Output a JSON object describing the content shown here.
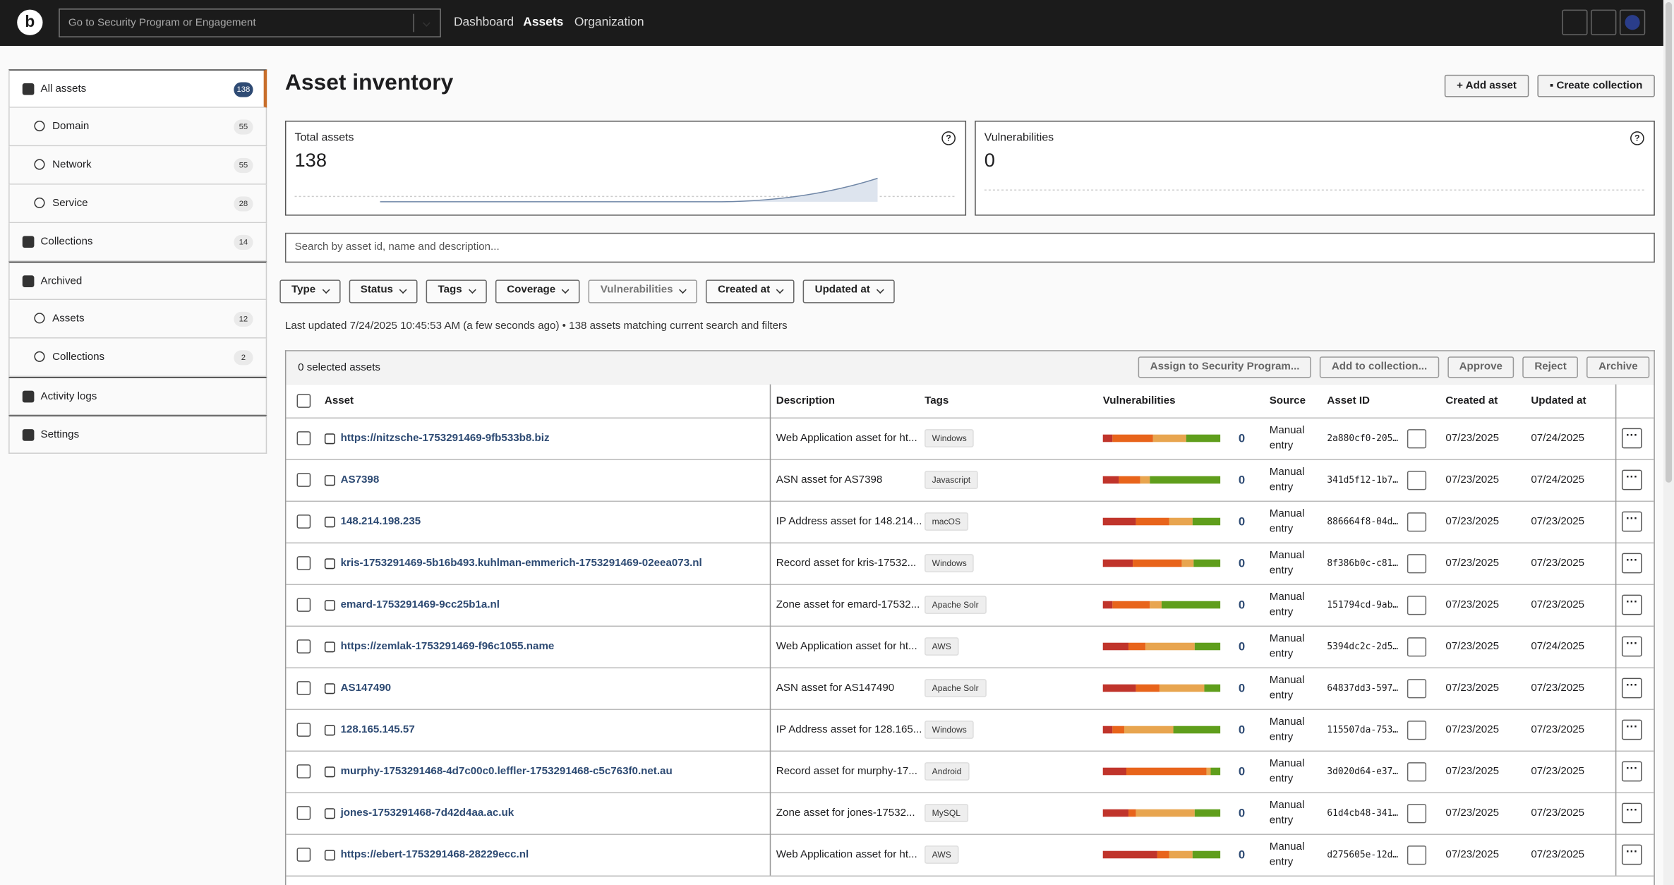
{
  "header": {
    "search_placeholder": "Go to Security Program or Engagement",
    "nav": [
      "Dashboard",
      "Assets",
      "Organization"
    ]
  },
  "sidebar": [
    {
      "label": "All assets",
      "count": 138
    },
    {
      "label": "Domain",
      "count": 55
    },
    {
      "label": "Network",
      "count": 55
    },
    {
      "label": "Service",
      "count": 28
    },
    {
      "label": "Collections",
      "count": 14
    },
    {
      "label": "Archived"
    },
    {
      "label": "Assets",
      "count": 12
    },
    {
      "label": "Collections",
      "count": 2
    },
    {
      "label": "Activity logs"
    },
    {
      "label": "Settings"
    }
  ],
  "page": {
    "title": "Asset inventory",
    "buttons": [
      "Add asset",
      "Create collection"
    ]
  },
  "cards": [
    {
      "label": "Total assets",
      "value": 138
    },
    {
      "label": "Vulnerabilities",
      "value": 0
    }
  ],
  "search_placeholder": "Search by asset id, name and description...",
  "filters": [
    "Type",
    "Status",
    "Tags",
    "Coverage",
    "Vulnerabilities",
    "Created at",
    "Updated at"
  ],
  "status_line": "Last updated 7/24/2025 10:45:53 AM (a few seconds ago) • 138 assets matching current search and filters",
  "table": {
    "selected": "0 selected assets",
    "actions": [
      "Assign to Security Program...",
      "Add to collection...",
      "Approve",
      "Reject",
      "Archive"
    ],
    "columns": [
      "Asset",
      "Description",
      "Tags",
      "Vulnerabilities",
      "Source",
      "Asset ID",
      "Created at",
      "Updated at"
    ],
    "severity_colors": [
      "#c0342b",
      "#e8641b",
      "#e8a54f",
      "#5f9e1c"
    ],
    "rows": [
      {
        "asset": "https://nitzsche-1753291469-9fb533b8.biz",
        "description": "Web Application asset for ht...",
        "tag": "Windows",
        "severity_bar": [
          8,
          35,
          28,
          29
        ],
        "vulnerabilities": 0,
        "source": "Manual entry",
        "asset_id": "2a880cf0-205…",
        "created": "07/23/2025",
        "updated": "07/24/2025"
      },
      {
        "asset": "AS7398",
        "description": "ASN asset for AS7398",
        "tag": "Javascript",
        "severity_bar": [
          14,
          18,
          8,
          60
        ],
        "vulnerabilities": 0,
        "source": "Manual entry",
        "asset_id": "341d5f12-1b7…",
        "created": "07/23/2025",
        "updated": "07/24/2025"
      },
      {
        "asset": "148.214.198.235",
        "description": "IP Address asset for 148.214...",
        "tag": "macOS",
        "severity_bar": [
          28,
          28,
          20,
          24
        ],
        "vulnerabilities": 0,
        "source": "Manual entry",
        "asset_id": "886664f8-04d…",
        "created": "07/23/2025",
        "updated": "07/23/2025"
      },
      {
        "asset": "kris-1753291469-5b16b493.kuhlman-emmerich-1753291469-02eea073.nl",
        "description": "Record asset for kris-17532...",
        "tag": "Windows",
        "severity_bar": [
          25,
          42,
          10,
          23
        ],
        "vulnerabilities": 0,
        "source": "Manual entry",
        "asset_id": "8f386b0c-c81…",
        "created": "07/23/2025",
        "updated": "07/23/2025"
      },
      {
        "asset": "emard-1753291469-9cc25b1a.nl",
        "description": "Zone asset for emard-17532...",
        "tag": "Apache Solr",
        "severity_bar": [
          8,
          32,
          10,
          50
        ],
        "vulnerabilities": 0,
        "source": "Manual entry",
        "asset_id": "151794cd-9ab…",
        "created": "07/23/2025",
        "updated": "07/23/2025"
      },
      {
        "asset": "https://zemlak-1753291469-f96c1055.name",
        "description": "Web Application asset for ht...",
        "tag": "AWS",
        "severity_bar": [
          22,
          14,
          42,
          22
        ],
        "vulnerabilities": 0,
        "source": "Manual entry",
        "asset_id": "5394dc2c-2d5…",
        "created": "07/23/2025",
        "updated": "07/24/2025"
      },
      {
        "asset": "AS147490",
        "description": "ASN asset for AS147490",
        "tag": "Apache Solr",
        "severity_bar": [
          28,
          20,
          38,
          14
        ],
        "vulnerabilities": 0,
        "source": "Manual entry",
        "asset_id": "64837dd3-597…",
        "created": "07/23/2025",
        "updated": "07/23/2025"
      },
      {
        "asset": "128.165.145.57",
        "description": "IP Address asset for 128.165...",
        "tag": "Windows",
        "severity_bar": [
          8,
          10,
          42,
          40
        ],
        "vulnerabilities": 0,
        "source": "Manual entry",
        "asset_id": "115507da-753…",
        "created": "07/23/2025",
        "updated": "07/23/2025"
      },
      {
        "asset": "murphy-1753291468-4d7c00c0.leffler-1753291468-c5c763f0.net.au",
        "description": "Record asset for murphy-17...",
        "tag": "Android",
        "severity_bar": [
          20,
          68,
          4,
          8
        ],
        "vulnerabilities": 0,
        "source": "Manual entry",
        "asset_id": "3d020d64-e37…",
        "created": "07/23/2025",
        "updated": "07/23/2025"
      },
      {
        "asset": "jones-1753291468-7d42d4aa.ac.uk",
        "description": "Zone asset for jones-17532...",
        "tag": "MySQL",
        "severity_bar": [
          22,
          6,
          50,
          22
        ],
        "vulnerabilities": 0,
        "source": "Manual entry",
        "asset_id": "61d4cb48-341…",
        "created": "07/23/2025",
        "updated": "07/23/2025"
      },
      {
        "asset": "https://ebert-1753291468-28229ecc.nl",
        "description": "Web Application asset for ht...",
        "tag": "AWS",
        "severity_bar": [
          46,
          10,
          20,
          24
        ],
        "vulnerabilities": 0,
        "source": "Manual entry",
        "asset_id": "d275605e-12d…",
        "created": "07/23/2025",
        "updated": "07/23/2025"
      }
    ]
  }
}
